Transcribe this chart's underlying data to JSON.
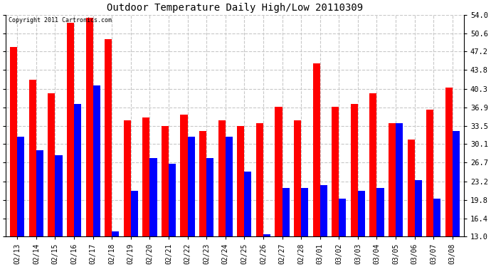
{
  "title": "Outdoor Temperature Daily High/Low 20110309",
  "copyright": "Copyright 2011 Cartronics.com",
  "dates": [
    "02/13",
    "02/14",
    "02/15",
    "02/16",
    "02/17",
    "02/18",
    "02/19",
    "02/20",
    "02/21",
    "02/22",
    "02/23",
    "02/24",
    "02/25",
    "02/26",
    "02/27",
    "02/28",
    "03/01",
    "03/02",
    "03/03",
    "03/04",
    "03/05",
    "03/06",
    "03/07",
    "03/08"
  ],
  "highs": [
    48.0,
    42.0,
    39.5,
    52.5,
    53.5,
    49.5,
    34.5,
    35.0,
    33.5,
    35.5,
    32.5,
    34.5,
    33.5,
    34.0,
    37.0,
    34.5,
    45.0,
    37.0,
    37.5,
    39.5,
    34.0,
    31.0,
    36.5,
    40.5
  ],
  "lows": [
    31.5,
    29.0,
    28.0,
    37.5,
    41.0,
    14.0,
    21.5,
    27.5,
    26.5,
    31.5,
    27.5,
    31.5,
    25.0,
    13.5,
    22.0,
    22.0,
    22.5,
    20.0,
    21.5,
    22.0,
    34.0,
    23.5,
    20.0,
    32.5
  ],
  "high_color": "#ff0000",
  "low_color": "#0000ff",
  "bg_color": "#ffffff",
  "grid_color": "#c8c8c8",
  "yticks": [
    13.0,
    16.4,
    19.8,
    23.2,
    26.7,
    30.1,
    33.5,
    36.9,
    40.3,
    43.8,
    47.2,
    50.6,
    54.0
  ],
  "ylim": [
    13.0,
    54.0
  ],
  "ybase": 13.0,
  "bar_width": 0.38
}
